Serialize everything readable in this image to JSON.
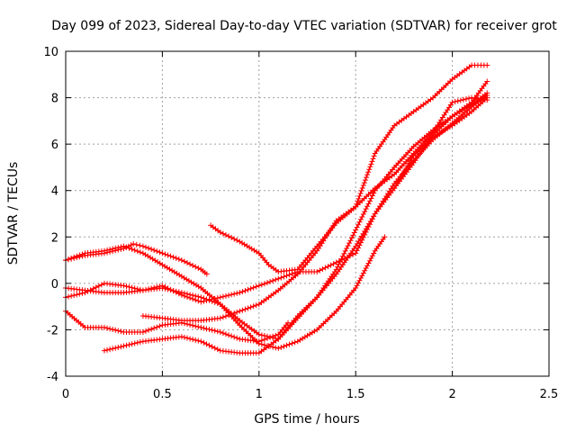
{
  "chart_data": {
    "type": "line",
    "title": "Day 099 of 2023, Sidereal Day-to-day VTEC variation (SDTVAR) for receiver grot",
    "xlabel": "GPS time / hours",
    "ylabel": "SDTVAR / TECUs",
    "xlim": [
      0,
      2.5
    ],
    "ylim": [
      -4,
      10
    ],
    "xticks": [
      0,
      0.5,
      1,
      1.5,
      2,
      2.5
    ],
    "xtick_labels": [
      "0",
      "0.5",
      "1",
      "1.5",
      "2",
      "2.5"
    ],
    "yticks": [
      -4,
      -2,
      0,
      2,
      4,
      6,
      8,
      10
    ],
    "ytick_labels": [
      "-4",
      "-2",
      "0",
      "2",
      "4",
      "6",
      "8",
      "10"
    ],
    "grid": true,
    "legend": "none",
    "marker": "+",
    "color": "#ff0000",
    "series": [
      {
        "x": [
          0.0,
          0.1,
          0.2,
          0.3,
          0.35,
          0.4,
          0.5,
          0.6,
          0.7,
          0.73
        ],
        "y": [
          1.0,
          1.2,
          1.3,
          1.5,
          1.7,
          1.6,
          1.3,
          1.0,
          0.6,
          0.4
        ]
      },
      {
        "x": [
          0.0,
          0.1,
          0.2,
          0.3,
          0.4,
          0.5,
          0.6,
          0.7,
          0.8,
          0.9,
          1.0,
          1.1,
          1.2,
          1.3,
          1.4,
          1.5,
          1.6,
          1.7,
          1.8,
          1.9,
          2.0,
          2.1,
          2.18
        ],
        "y": [
          1.0,
          1.3,
          1.4,
          1.6,
          1.3,
          0.8,
          0.3,
          -0.2,
          -0.9,
          -1.6,
          -2.2,
          -2.4,
          -1.5,
          -0.6,
          0.4,
          1.6,
          3.0,
          4.3,
          5.3,
          6.2,
          6.9,
          7.6,
          8.1
        ]
      },
      {
        "x": [
          0.0,
          0.1,
          0.2,
          0.3,
          0.4,
          0.5,
          0.6,
          0.7,
          0.8,
          0.9,
          1.0,
          1.1,
          1.2,
          1.3,
          1.4,
          1.5,
          1.6,
          1.65
        ],
        "y": [
          -0.2,
          -0.3,
          -0.4,
          -0.4,
          -0.3,
          -0.2,
          -0.4,
          -0.6,
          -0.9,
          -1.8,
          -2.6,
          -2.8,
          -2.5,
          -2.0,
          -1.2,
          -0.2,
          1.4,
          2.0
        ]
      },
      {
        "x": [
          0.0,
          0.1,
          0.2,
          0.3,
          0.4,
          0.5,
          0.6,
          0.7,
          0.8,
          0.9,
          1.0,
          1.1,
          1.2,
          1.3,
          1.4,
          1.5,
          1.6,
          1.7,
          1.8,
          1.9,
          2.0,
          2.1,
          2.18
        ],
        "y": [
          -0.6,
          -0.4,
          0.0,
          -0.1,
          -0.3,
          -0.1,
          -0.5,
          -0.8,
          -0.6,
          -0.4,
          -0.1,
          0.2,
          0.5,
          0.5,
          0.9,
          1.3,
          3.0,
          4.1,
          5.5,
          6.3,
          6.8,
          7.4,
          8.0
        ]
      },
      {
        "x": [
          0.0,
          0.1,
          0.2,
          0.3,
          0.4,
          0.5,
          0.6,
          0.7,
          0.8,
          0.9,
          1.0,
          1.1,
          1.15
        ],
        "y": [
          -1.2,
          -1.9,
          -1.9,
          -2.1,
          -2.1,
          -1.8,
          -1.7,
          -1.9,
          -2.1,
          -2.4,
          -2.5,
          -2.2,
          -1.7
        ]
      },
      {
        "x": [
          0.2,
          0.3,
          0.4,
          0.5,
          0.6,
          0.7,
          0.8,
          0.9,
          1.0,
          1.1,
          1.2,
          1.3,
          1.4,
          1.5,
          1.6,
          1.7,
          1.8,
          1.9,
          2.0,
          2.1,
          2.18
        ],
        "y": [
          -2.9,
          -2.7,
          -2.5,
          -2.4,
          -2.3,
          -2.5,
          -2.9,
          -3.0,
          -3.0,
          -2.4,
          -1.4,
          -0.6,
          0.6,
          2.3,
          4.0,
          5.0,
          5.9,
          6.6,
          7.2,
          7.7,
          8.2
        ]
      },
      {
        "x": [
          0.75,
          0.8,
          0.9,
          1.0,
          1.05,
          1.1,
          1.2,
          1.3,
          1.4,
          1.5,
          1.6,
          1.7,
          1.8,
          1.9,
          2.0,
          2.1,
          2.18
        ],
        "y": [
          2.5,
          2.2,
          1.8,
          1.3,
          0.8,
          0.5,
          0.6,
          1.6,
          2.6,
          3.3,
          5.6,
          6.8,
          7.4,
          8.0,
          8.8,
          9.4,
          9.4
        ]
      },
      {
        "x": [
          0.4,
          0.5,
          0.6,
          0.7,
          0.8,
          0.9,
          1.0,
          1.1,
          1.2,
          1.3,
          1.4,
          1.5,
          1.6,
          1.7,
          1.8,
          1.9,
          2.0,
          2.1,
          2.18
        ],
        "y": [
          -1.4,
          -1.5,
          -1.6,
          -1.6,
          -1.5,
          -1.2,
          -0.9,
          -0.3,
          0.4,
          1.4,
          2.7,
          3.3,
          4.1,
          4.7,
          5.6,
          6.5,
          7.8,
          8.0,
          7.9
        ]
      },
      {
        "x": [
          1.7,
          1.8,
          1.9,
          2.0,
          2.1,
          2.18
        ],
        "y": [
          4.1,
          5.2,
          6.4,
          7.2,
          7.8,
          8.7
        ]
      }
    ]
  }
}
